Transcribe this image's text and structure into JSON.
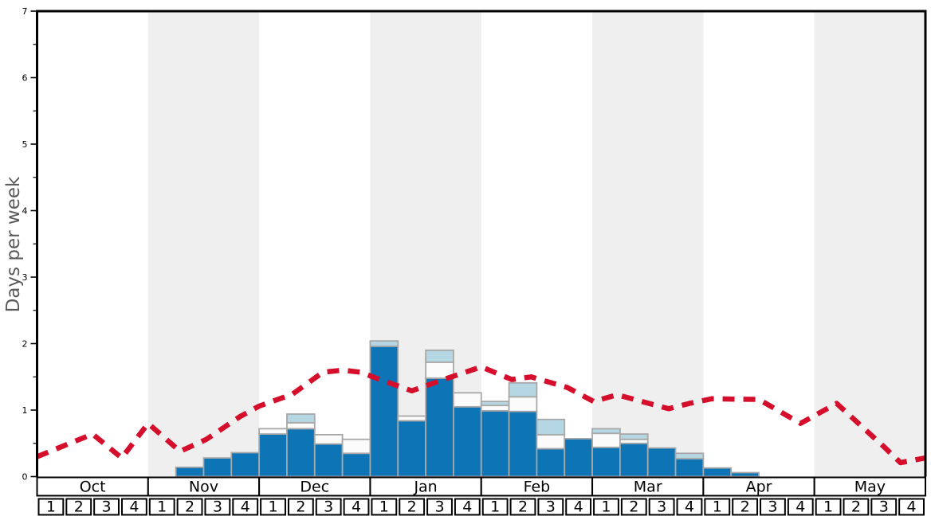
{
  "y_axis": {
    "label": "Days per week",
    "ticks": [
      "0",
      "1",
      "2",
      "3",
      "4",
      "5",
      "6",
      "7"
    ],
    "max": 7,
    "minor_tick_step": 0.5
  },
  "x_axis": {
    "months": [
      "Oct",
      "Nov",
      "Dec",
      "Jan",
      "Feb",
      "Mar",
      "Apr",
      "May"
    ],
    "week_labels": [
      "1",
      "2",
      "3",
      "4"
    ],
    "shaded_months": [
      "Nov",
      "Jan",
      "Mar",
      "May"
    ]
  },
  "colors": {
    "bar_dark_blue": "#0d74b6",
    "bar_white": "#fbfbfb",
    "bar_light_blue": "#b5d6e3",
    "bar_border": "#a8a8a8",
    "line_red": "#d50f2b",
    "band_gray": "#efefef",
    "axis_black": "#000000",
    "y_label_gray": "#595959"
  },
  "chart_data": {
    "type": "bar",
    "title": "",
    "xlabel": "",
    "ylabel": "Days per week",
    "ylim": [
      0,
      7
    ],
    "grid": false,
    "legend": "none",
    "x_unit": "week",
    "categories": [
      "Oct-1",
      "Oct-2",
      "Oct-3",
      "Oct-4",
      "Nov-1",
      "Nov-2",
      "Nov-3",
      "Nov-4",
      "Dec-1",
      "Dec-2",
      "Dec-3",
      "Dec-4",
      "Jan-1",
      "Jan-2",
      "Jan-3",
      "Jan-4",
      "Feb-1",
      "Feb-2",
      "Feb-3",
      "Feb-4",
      "Mar-1",
      "Mar-2",
      "Mar-3",
      "Mar-4",
      "Apr-1",
      "Apr-2",
      "Apr-3",
      "Apr-4",
      "May-1",
      "May-2",
      "May-3",
      "May-4"
    ],
    "series": [
      {
        "name": "dark-blue-days",
        "color": "#0d74b6",
        "values": [
          0,
          0,
          0,
          0,
          0,
          0.14,
          0.28,
          0.36,
          0.64,
          0.72,
          0.49,
          0.35,
          1.96,
          0.84,
          1.48,
          1.05,
          0.99,
          0.98,
          0.42,
          0.57,
          0.44,
          0.5,
          0.43,
          0.27,
          0.13,
          0.06,
          0,
          0,
          0,
          0,
          0,
          0
        ]
      },
      {
        "name": "white-days",
        "color": "#fbfbfb",
        "values": [
          0,
          0,
          0,
          0,
          0,
          0,
          0,
          0,
          0.08,
          0.09,
          0.14,
          0.21,
          0,
          0.07,
          0.24,
          0.21,
          0.08,
          0.22,
          0.21,
          0,
          0.21,
          0.06,
          0,
          0,
          0,
          0,
          0,
          0,
          0,
          0,
          0,
          0
        ]
      },
      {
        "name": "light-blue-days",
        "color": "#b5d6e3",
        "values": [
          0,
          0,
          0,
          0,
          0,
          0,
          0,
          0,
          0,
          0.13,
          0,
          0,
          0.08,
          0,
          0.18,
          0,
          0.06,
          0.21,
          0.23,
          0,
          0.07,
          0.08,
          0,
          0.08,
          0,
          0,
          0,
          0,
          0,
          0,
          0,
          0
        ]
      }
    ],
    "line": {
      "name": "red-dashed-average-line",
      "color": "#d50f2b",
      "dashed": true,
      "points_week_units": [
        [
          0,
          0.3
        ],
        [
          2.0,
          0.64
        ],
        [
          3.05,
          0.28
        ],
        [
          4.0,
          0.8
        ],
        [
          5.15,
          0.38
        ],
        [
          6.1,
          0.56
        ],
        [
          7.3,
          0.9
        ],
        [
          8.0,
          1.06
        ],
        [
          9.2,
          1.24
        ],
        [
          10.3,
          1.57
        ],
        [
          11.0,
          1.6
        ],
        [
          11.65,
          1.57
        ],
        [
          12.35,
          1.46
        ],
        [
          13.5,
          1.29
        ],
        [
          14.5,
          1.44
        ],
        [
          16.0,
          1.65
        ],
        [
          17.1,
          1.46
        ],
        [
          17.8,
          1.5
        ],
        [
          19.1,
          1.34
        ],
        [
          20.05,
          1.13
        ],
        [
          20.9,
          1.23
        ],
        [
          22.75,
          1.02
        ],
        [
          23.5,
          1.1
        ],
        [
          24.3,
          1.17
        ],
        [
          26.0,
          1.16
        ],
        [
          27.5,
          0.8
        ],
        [
          28.8,
          1.1
        ],
        [
          30.5,
          0.45
        ],
        [
          31.1,
          0.21
        ],
        [
          32,
          0.28
        ]
      ]
    }
  }
}
